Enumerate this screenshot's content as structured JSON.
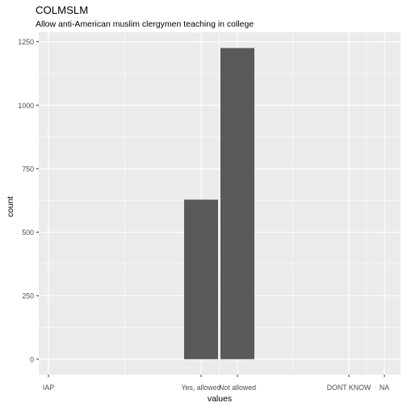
{
  "chart_data": {
    "type": "bar",
    "title": "COLMSLM",
    "subtitle": "Allow anti-American muslim clergymen teaching in college",
    "xlabel": "values",
    "ylabel": "count",
    "x_ticks": [
      {
        "label": "IAP",
        "x": -98
      },
      {
        "label": "Yes, allowed",
        "x": 1
      },
      {
        "label": "Not allowed",
        "x": 2
      },
      {
        "label": "DONT KNOW",
        "x": 8
      },
      {
        "label": "NA",
        "x": 9
      }
    ],
    "bars": [
      {
        "x": 1,
        "value": 628
      },
      {
        "x": 2,
        "value": 1225
      }
    ],
    "y_ticks": [
      0,
      250,
      500,
      750,
      1000,
      1250
    ],
    "ylim": [
      -61,
      1287
    ],
    "grid": true,
    "colors": {
      "panel": "#ebebeb",
      "grid_major": "#ffffff",
      "bar": "#595959",
      "axis_text": "#4d4d4d",
      "title_text": "#000000"
    }
  }
}
